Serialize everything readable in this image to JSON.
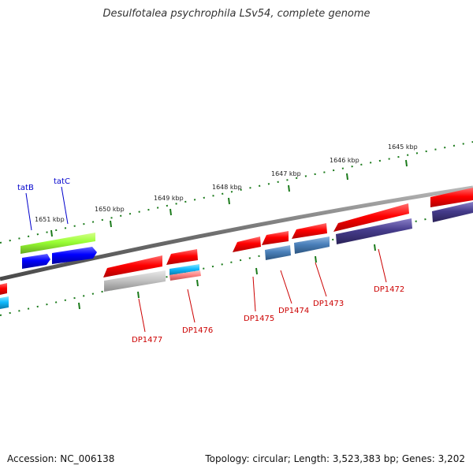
{
  "title": "Desulfotalea psychrophila LSv54, complete genome",
  "footer": {
    "accession": "Accession: NC_006138",
    "summary": "Topology: circular; Length: 3,523,383 bp; Genes: 3,202"
  },
  "colors": {
    "backbone": "#7a7a7a",
    "ticks": "#1a7a1a",
    "label_red": "#cc0000",
    "label_blue": "#0000cc",
    "gene_red": "#ff1a1a",
    "gene_blue": "#1a1aff",
    "gene_lime": "#aaff33",
    "gene_cyan": "#22ccff",
    "gene_steel": "#4f86bd",
    "gene_indigo": "#4a4090",
    "gene_grey": "#c0c0c0",
    "gene_pink": "#ff8080"
  },
  "kbp_labels": [
    "1651 kbp",
    "1650 kbp",
    "1649 kbp",
    "1648 kbp",
    "1647 kbp",
    "1646 kbp",
    "1645 kbp"
  ],
  "gene_labels": [
    {
      "text": "tatB",
      "color": "blue"
    },
    {
      "text": "tatC",
      "color": "blue"
    },
    {
      "text": "DP1477",
      "color": "red"
    },
    {
      "text": "DP1476",
      "color": "red"
    },
    {
      "text": "DP1475",
      "color": "red"
    },
    {
      "text": "DP1474",
      "color": "red"
    },
    {
      "text": "DP1473",
      "color": "red"
    },
    {
      "text": "DP1472",
      "color": "red"
    }
  ]
}
